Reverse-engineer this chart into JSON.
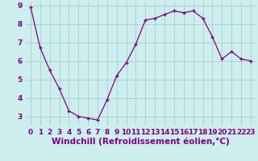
{
  "x": [
    0,
    1,
    2,
    3,
    4,
    5,
    6,
    7,
    8,
    9,
    10,
    11,
    12,
    13,
    14,
    15,
    16,
    17,
    18,
    19,
    20,
    21,
    22,
    23
  ],
  "y": [
    8.9,
    6.7,
    5.5,
    4.5,
    3.3,
    3.0,
    2.9,
    2.8,
    3.9,
    5.2,
    5.9,
    6.9,
    8.2,
    8.3,
    8.5,
    8.7,
    8.6,
    8.7,
    8.3,
    7.3,
    6.1,
    6.5,
    6.1,
    6.0
  ],
  "line_color": "#800080",
  "marker": "+",
  "bg_color": "#cceeee",
  "grid_color": "#aacccc",
  "xlabel": "Windchill (Refroidissement éolien,°C)",
  "xlabel_color": "#800080",
  "tick_color": "#800080",
  "ylim": [
    2.5,
    9.2
  ],
  "xlim": [
    -0.5,
    23.5
  ],
  "yticks": [
    3,
    4,
    5,
    6,
    7,
    8,
    9
  ],
  "xticks": [
    0,
    1,
    2,
    3,
    4,
    5,
    6,
    7,
    8,
    9,
    10,
    11,
    12,
    13,
    14,
    15,
    16,
    17,
    18,
    19,
    20,
    21,
    22,
    23
  ],
  "tick_fontsize": 6.5,
  "xlabel_fontsize": 7.5,
  "xlabel_fontweight": "bold"
}
